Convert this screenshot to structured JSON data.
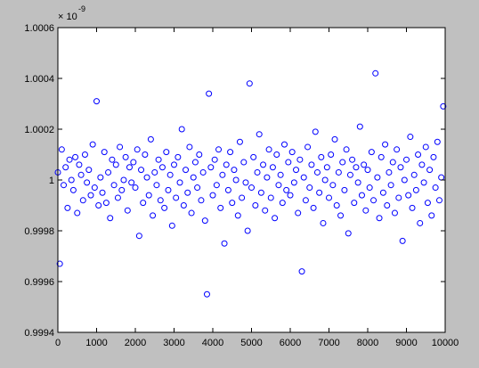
{
  "chart_data": {
    "type": "scatter",
    "axis_exponent": {
      "base": "× 10",
      "power": "-9"
    },
    "xlim": [
      0,
      10000
    ],
    "xticks": [
      0,
      1000,
      2000,
      3000,
      4000,
      5000,
      6000,
      7000,
      8000,
      9000,
      10000
    ],
    "ylim": [
      0.9994,
      1.0006
    ],
    "yticks": [
      0.9994,
      0.9996,
      0.9998,
      1,
      1.0002,
      1.0004,
      1.0006
    ],
    "grid": false,
    "marker": "open-circle",
    "series": [
      {
        "color": "#0000ff",
        "x": [
          0,
          50,
          100,
          150,
          200,
          250,
          300,
          350,
          400,
          450,
          500,
          550,
          600,
          650,
          700,
          750,
          800,
          850,
          900,
          950,
          1000,
          1050,
          1100,
          1150,
          1200,
          1250,
          1300,
          1350,
          1400,
          1450,
          1500,
          1550,
          1600,
          1650,
          1700,
          1750,
          1800,
          1850,
          1900,
          1950,
          2000,
          2050,
          2100,
          2150,
          2200,
          2250,
          2300,
          2350,
          2400,
          2450,
          2500,
          2550,
          2600,
          2650,
          2700,
          2750,
          2800,
          2850,
          2900,
          2950,
          3000,
          3050,
          3100,
          3150,
          3200,
          3250,
          3300,
          3350,
          3400,
          3450,
          3500,
          3550,
          3600,
          3650,
          3700,
          3750,
          3800,
          3850,
          3900,
          3950,
          4000,
          4050,
          4100,
          4150,
          4200,
          4250,
          4300,
          4350,
          4400,
          4450,
          4500,
          4550,
          4600,
          4650,
          4700,
          4750,
          4800,
          4850,
          4900,
          4950,
          5000,
          5050,
          5100,
          5150,
          5200,
          5250,
          5300,
          5350,
          5400,
          5450,
          5500,
          5550,
          5600,
          5650,
          5700,
          5750,
          5800,
          5850,
          5900,
          5950,
          6000,
          6050,
          6100,
          6150,
          6200,
          6250,
          6300,
          6350,
          6400,
          6450,
          6500,
          6550,
          6600,
          6650,
          6700,
          6750,
          6800,
          6850,
          6900,
          6950,
          7000,
          7050,
          7100,
          7150,
          7200,
          7250,
          7300,
          7350,
          7400,
          7450,
          7500,
          7550,
          7600,
          7650,
          7700,
          7750,
          7800,
          7850,
          7900,
          7950,
          8000,
          8050,
          8100,
          8150,
          8200,
          8250,
          8300,
          8350,
          8400,
          8450,
          8500,
          8550,
          8600,
          8650,
          8700,
          8750,
          8800,
          8850,
          8900,
          8950,
          9000,
          9050,
          9100,
          9150,
          9200,
          9250,
          9300,
          9350,
          9400,
          9450,
          9500,
          9550,
          9600,
          9650,
          9700,
          9750,
          9800,
          9850,
          9900,
          9950
        ],
        "values": [
          1.00003,
          0.99967,
          1.00012,
          0.99998,
          1.00005,
          0.99989,
          1.00008,
          1.0,
          0.99996,
          1.00009,
          0.99987,
          1.00006,
          1.00002,
          0.99992,
          1.0001,
          0.99999,
          1.00004,
          0.99994,
          1.00014,
          0.99997,
          1.00031,
          0.9999,
          1.00001,
          0.99995,
          1.00011,
          0.99991,
          1.00003,
          0.99985,
          1.00008,
          0.99998,
          1.00006,
          0.99993,
          1.00013,
          0.99996,
          1.0,
          1.00009,
          0.99988,
          1.00005,
          0.99999,
          1.00007,
          0.99997,
          1.00012,
          0.99978,
          1.00004,
          0.99991,
          1.0001,
          1.00001,
          0.99994,
          1.00016,
          0.99986,
          1.00003,
          0.99998,
          1.00008,
          0.99992,
          1.00005,
          0.99989,
          1.00011,
          0.99996,
          1.00002,
          0.99982,
          1.00006,
          0.99993,
          1.00009,
          0.99999,
          1.0002,
          0.9999,
          1.00004,
          0.99995,
          1.00013,
          0.99987,
          1.00001,
          1.00007,
          0.99997,
          1.0001,
          0.99992,
          1.00003,
          0.99984,
          0.99955,
          1.00034,
          1.00005,
          0.99994,
          1.00008,
          0.99998,
          1.00012,
          0.99989,
          1.00002,
          0.99975,
          1.00006,
          0.99996,
          1.00011,
          0.99991,
          1.00004,
          1.0,
          0.99986,
          1.00015,
          0.99993,
          1.00007,
          0.99999,
          0.9998,
          1.00038,
          0.99997,
          1.00009,
          0.9999,
          1.00003,
          1.00018,
          0.99995,
          1.00006,
          0.99988,
          1.00001,
          1.00012,
          0.99993,
          1.00005,
          0.99985,
          1.0001,
          0.99998,
          1.00002,
          0.99991,
          1.00014,
          0.99996,
          1.00007,
          0.99994,
          1.00011,
          0.99999,
          1.00004,
          0.99987,
          1.00008,
          0.99964,
          1.00001,
          0.99992,
          1.00013,
          0.99997,
          1.00006,
          0.99989,
          1.00019,
          1.00003,
          0.99995,
          1.00009,
          0.99983,
          1.0,
          1.00005,
          0.99993,
          1.0001,
          0.99998,
          1.00016,
          0.9999,
          1.00003,
          0.99986,
          1.00007,
          0.99996,
          1.00012,
          0.99979,
          1.00002,
          1.00008,
          0.99991,
          1.00005,
          0.99999,
          1.00021,
          0.99994,
          1.00006,
          0.99988,
          1.00004,
          0.99997,
          1.00011,
          0.99992,
          1.00042,
          1.00001,
          0.99985,
          1.00009,
          0.99995,
          1.00014,
          0.9999,
          1.00003,
          0.99998,
          1.00007,
          0.99987,
          1.00012,
          0.99993,
          1.00005,
          0.99976,
          1.0,
          1.00008,
          0.99994,
          1.00017,
          0.99989,
          1.00002,
          0.99996,
          1.0001,
          0.99983,
          1.00006,
          0.99999,
          1.00013,
          0.99991,
          1.00004,
          0.99986,
          1.00009,
          0.99997,
          1.00015,
          0.99992,
          1.00001,
          1.00029
        ]
      }
    ]
  }
}
